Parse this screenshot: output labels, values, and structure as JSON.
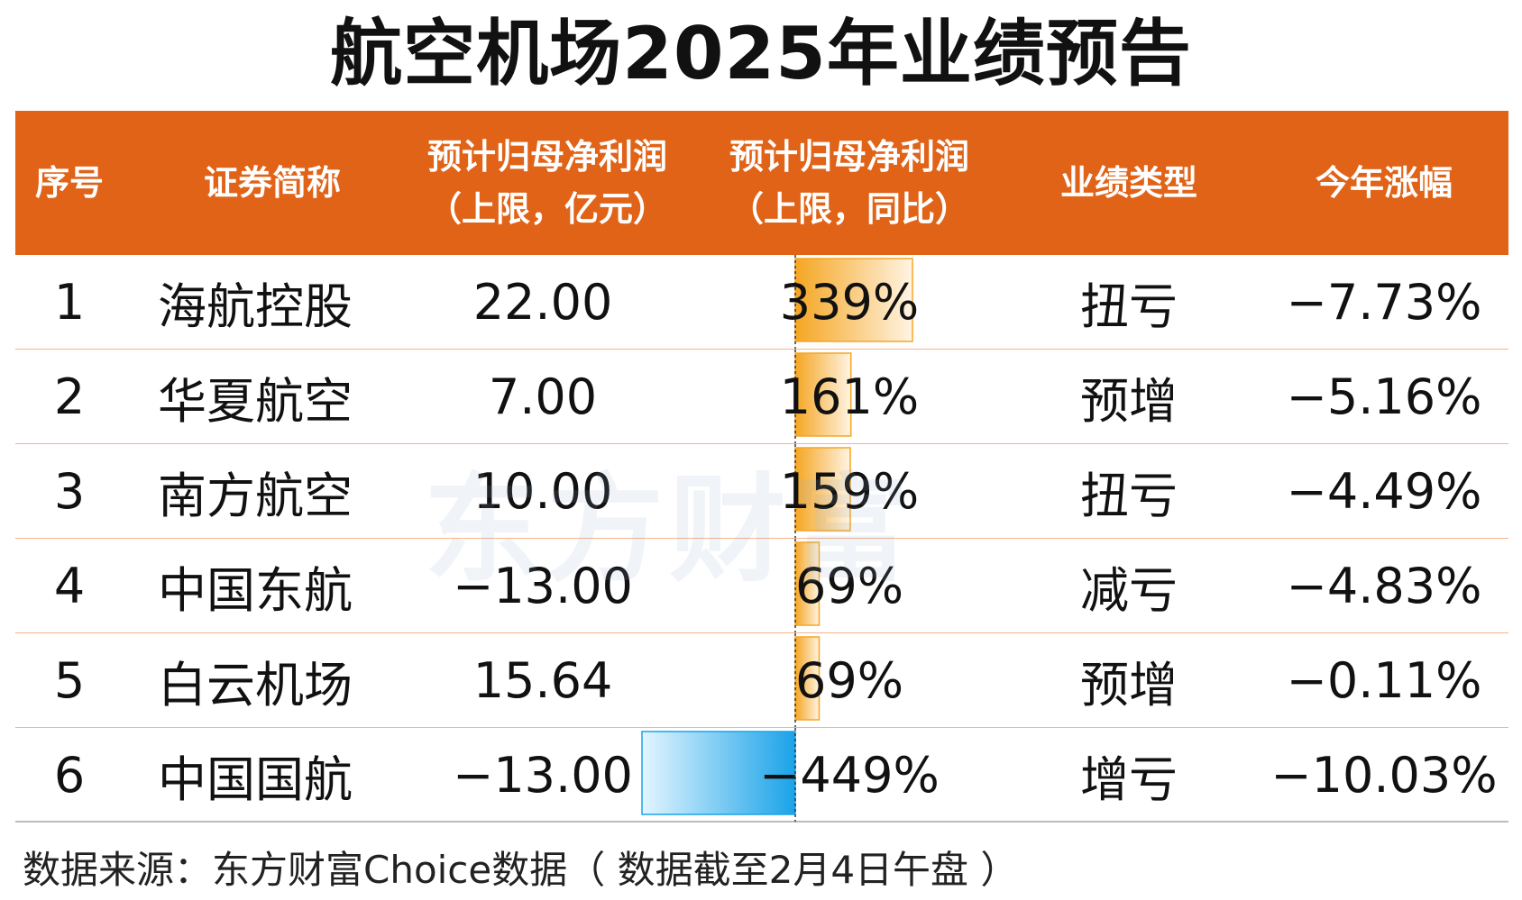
{
  "title": "航空机场2025年业绩预告",
  "headers": {
    "no": "序号",
    "name": "证券简称",
    "profit_line1": "预计归母净利润",
    "profit_line2": "（上限，亿元）",
    "yoy_line1": "预计归母净利润",
    "yoy_line2": "（上限，同比）",
    "type": "业绩类型",
    "change": "今年涨幅"
  },
  "colors": {
    "header_bg": "#e06318",
    "positive_bar": "#f5a623",
    "negative_bar": "#1aa3e8"
  },
  "watermark": "东方财富",
  "source": "数据来源：东方财富Choice数据（ 数据截至2月4日午盘 ）",
  "chart_data": {
    "type": "table",
    "columns": [
      "序号",
      "证券简称",
      "预计归母净利润（上限，亿元）",
      "预计归母净利润（上限，同比）",
      "业绩类型",
      "今年涨幅"
    ],
    "rows": [
      {
        "no": "1",
        "name": "海航控股",
        "profit": "22.00",
        "yoy": "339%",
        "yoy_value": 339,
        "type": "扭亏",
        "change": "−7.73%"
      },
      {
        "no": "2",
        "name": "华夏航空",
        "profit": "7.00",
        "yoy": "161%",
        "yoy_value": 161,
        "type": "预增",
        "change": "−5.16%"
      },
      {
        "no": "3",
        "name": "南方航空",
        "profit": "10.00",
        "yoy": "159%",
        "yoy_value": 159,
        "type": "扭亏",
        "change": "−4.49%"
      },
      {
        "no": "4",
        "name": "中国东航",
        "profit": "−13.00",
        "yoy": "69%",
        "yoy_value": 69,
        "type": "减亏",
        "change": "−4.83%"
      },
      {
        "no": "5",
        "name": "白云机场",
        "profit": "15.64",
        "yoy": "69%",
        "yoy_value": 69,
        "type": "预增",
        "change": "−0.11%"
      },
      {
        "no": "6",
        "name": "中国国航",
        "profit": "−13.00",
        "yoy": "−449%",
        "yoy_value": -449,
        "type": "增亏",
        "change": "−10.03%"
      }
    ]
  }
}
